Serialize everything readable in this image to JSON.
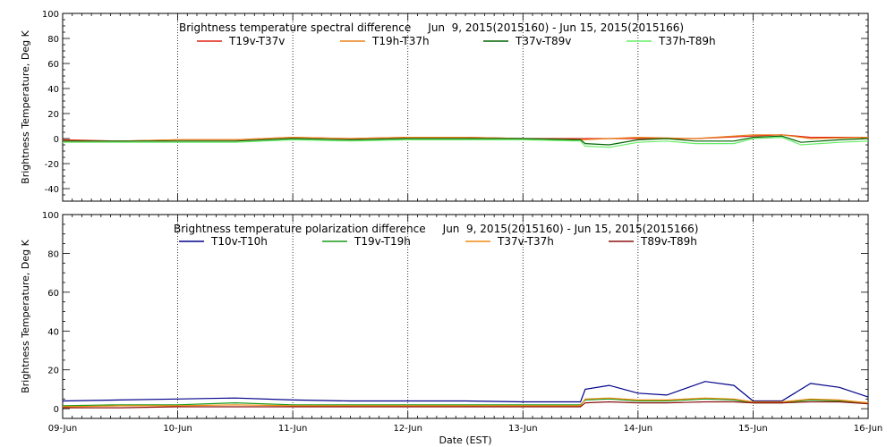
{
  "x_axis": {
    "label": "Date (EST)",
    "tick_labels": [
      "09-Jun",
      "10-Jun",
      "11-Jun",
      "12-Jun",
      "13-Jun",
      "14-Jun",
      "15-Jun",
      "16-Jun"
    ]
  },
  "chart_data": [
    {
      "type": "line",
      "title": "Brightness temperature spectral difference     Jun  9, 2015(2015160) - Jun 15, 2015(2015166)",
      "xlabel": "",
      "ylabel": "Brightness Temperature, Deg K",
      "xlim": [
        "2015-06-09",
        "2015-06-16"
      ],
      "ylim": [
        -50,
        100
      ],
      "yticks": [
        -40,
        -20,
        0,
        20,
        40,
        60,
        80,
        100
      ],
      "grid": "vertical dotted lines at each day",
      "legend_placement": "top",
      "series": [
        {
          "name": "T19v-T37v",
          "color": "#e02010",
          "points": [
            [
              "2015-06-09 00:00",
              -1
            ],
            [
              "2015-06-09 12:00",
              -2
            ],
            [
              "2015-06-10 00:00",
              -1
            ],
            [
              "2015-06-10 12:00",
              -1
            ],
            [
              "2015-06-11 00:00",
              1
            ],
            [
              "2015-06-11 12:00",
              0
            ],
            [
              "2015-06-12 00:00",
              1
            ],
            [
              "2015-06-12 12:00",
              1
            ],
            [
              "2015-06-13 00:00",
              0
            ],
            [
              "2015-06-13 12:00",
              0
            ],
            [
              "2015-06-14 00:00",
              0
            ],
            [
              "2015-06-14 12:00",
              0
            ],
            [
              "2015-06-15 00:00",
              2
            ],
            [
              "2015-06-15 06:00",
              3
            ],
            [
              "2015-06-15 12:00",
              1
            ],
            [
              "2015-06-16 00:00",
              1
            ]
          ]
        },
        {
          "name": "T19h-T37h",
          "color": "#e8801a",
          "points": [
            [
              "2015-06-09 00:00",
              -2
            ],
            [
              "2015-06-09 12:00",
              -2
            ],
            [
              "2015-06-10 00:00",
              -1
            ],
            [
              "2015-06-10 12:00",
              -1
            ],
            [
              "2015-06-11 00:00",
              1
            ],
            [
              "2015-06-11 12:00",
              0
            ],
            [
              "2015-06-12 00:00",
              1
            ],
            [
              "2015-06-12 12:00",
              1
            ],
            [
              "2015-06-13 00:00",
              0
            ],
            [
              "2015-06-13 12:00",
              -1
            ],
            [
              "2015-06-14 00:00",
              1
            ],
            [
              "2015-06-14 12:00",
              0
            ],
            [
              "2015-06-15 00:00",
              3
            ],
            [
              "2015-06-15 06:00",
              3
            ],
            [
              "2015-06-15 12:00",
              0
            ],
            [
              "2015-06-16 00:00",
              1
            ]
          ]
        },
        {
          "name": "T37v-T89v",
          "color": "#006400",
          "points": [
            [
              "2015-06-09 00:00",
              -2
            ],
            [
              "2015-06-09 12:00",
              -2
            ],
            [
              "2015-06-10 00:00",
              -2
            ],
            [
              "2015-06-10 12:00",
              -2
            ],
            [
              "2015-06-11 00:00",
              0
            ],
            [
              "2015-06-11 12:00",
              -1
            ],
            [
              "2015-06-12 00:00",
              0
            ],
            [
              "2015-06-12 12:00",
              0
            ],
            [
              "2015-06-13 00:00",
              0
            ],
            [
              "2015-06-13 12:00",
              -1
            ],
            [
              "2015-06-13 13:00",
              -4
            ],
            [
              "2015-06-13 18:00",
              -5
            ],
            [
              "2015-06-14 00:00",
              -1
            ],
            [
              "2015-06-14 06:00",
              0
            ],
            [
              "2015-06-14 12:00",
              -2
            ],
            [
              "2015-06-14 20:00",
              -2
            ],
            [
              "2015-06-15 00:00",
              1
            ],
            [
              "2015-06-15 06:00",
              2
            ],
            [
              "2015-06-15 10:00",
              -3
            ],
            [
              "2015-06-15 18:00",
              -1
            ],
            [
              "2015-06-16 00:00",
              0
            ]
          ]
        },
        {
          "name": "T37h-T89h",
          "color": "#66ee66",
          "points": [
            [
              "2015-06-09 00:00",
              -3
            ],
            [
              "2015-06-09 12:00",
              -3
            ],
            [
              "2015-06-10 00:00",
              -3
            ],
            [
              "2015-06-10 12:00",
              -3
            ],
            [
              "2015-06-11 00:00",
              -1
            ],
            [
              "2015-06-11 12:00",
              -2
            ],
            [
              "2015-06-12 00:00",
              -1
            ],
            [
              "2015-06-12 12:00",
              -1
            ],
            [
              "2015-06-13 00:00",
              -1
            ],
            [
              "2015-06-13 12:00",
              -2
            ],
            [
              "2015-06-13 13:00",
              -6
            ],
            [
              "2015-06-13 18:00",
              -7
            ],
            [
              "2015-06-14 00:00",
              -3
            ],
            [
              "2015-06-14 06:00",
              -2
            ],
            [
              "2015-06-14 12:00",
              -4
            ],
            [
              "2015-06-14 20:00",
              -4
            ],
            [
              "2015-06-15 00:00",
              0
            ],
            [
              "2015-06-15 06:00",
              1
            ],
            [
              "2015-06-15 10:00",
              -5
            ],
            [
              "2015-06-15 18:00",
              -3
            ],
            [
              "2015-06-16 00:00",
              -2
            ]
          ]
        }
      ]
    },
    {
      "type": "line",
      "title": "Brightness temperature polarization difference     Jun  9, 2015(2015160) - Jun 15, 2015(2015166)",
      "xlabel": "Date (EST)",
      "ylabel": "Brightness Temperature, Deg K",
      "xlim": [
        "2015-06-09",
        "2015-06-16"
      ],
      "ylim": [
        -5,
        100
      ],
      "yticks": [
        0,
        20,
        40,
        60,
        80,
        100
      ],
      "grid": "vertical dotted lines at each day",
      "legend_placement": "top",
      "series": [
        {
          "name": "T10v-T10h",
          "color": "#00008b",
          "points": [
            [
              "2015-06-09 00:00",
              4
            ],
            [
              "2015-06-09 12:00",
              4.5
            ],
            [
              "2015-06-10 00:00",
              5
            ],
            [
              "2015-06-10 12:00",
              5.5
            ],
            [
              "2015-06-11 00:00",
              4.5
            ],
            [
              "2015-06-11 12:00",
              4
            ],
            [
              "2015-06-12 00:00",
              4
            ],
            [
              "2015-06-12 12:00",
              4
            ],
            [
              "2015-06-13 00:00",
              3.5
            ],
            [
              "2015-06-13 12:00",
              3.5
            ],
            [
              "2015-06-13 13:00",
              10
            ],
            [
              "2015-06-13 18:00",
              12
            ],
            [
              "2015-06-14 00:00",
              8
            ],
            [
              "2015-06-14 06:00",
              7
            ],
            [
              "2015-06-14 14:00",
              14
            ],
            [
              "2015-06-14 20:00",
              12
            ],
            [
              "2015-06-15 00:00",
              4
            ],
            [
              "2015-06-15 06:00",
              4
            ],
            [
              "2015-06-15 12:00",
              13
            ],
            [
              "2015-06-15 18:00",
              11
            ],
            [
              "2015-06-16 00:00",
              6
            ]
          ]
        },
        {
          "name": "T19v-T19h",
          "color": "#1a9a1a",
          "points": [
            [
              "2015-06-09 00:00",
              1.5
            ],
            [
              "2015-06-09 12:00",
              2
            ],
            [
              "2015-06-10 00:00",
              2
            ],
            [
              "2015-06-10 12:00",
              3
            ],
            [
              "2015-06-11 00:00",
              2
            ],
            [
              "2015-06-11 12:00",
              2
            ],
            [
              "2015-06-12 00:00",
              2
            ],
            [
              "2015-06-12 12:00",
              2
            ],
            [
              "2015-06-13 00:00",
              2
            ],
            [
              "2015-06-13 12:00",
              2
            ],
            [
              "2015-06-13 13:00",
              4.5
            ],
            [
              "2015-06-13 18:00",
              5
            ],
            [
              "2015-06-14 00:00",
              4
            ],
            [
              "2015-06-14 06:00",
              4
            ],
            [
              "2015-06-14 14:00",
              5
            ],
            [
              "2015-06-14 20:00",
              4.5
            ],
            [
              "2015-06-15 00:00",
              3
            ],
            [
              "2015-06-15 06:00",
              3
            ],
            [
              "2015-06-15 12:00",
              4.5
            ],
            [
              "2015-06-15 18:00",
              4
            ],
            [
              "2015-06-16 00:00",
              3
            ]
          ]
        },
        {
          "name": "T37v-T37h",
          "color": "#f08a10",
          "points": [
            [
              "2015-06-09 00:00",
              1
            ],
            [
              "2015-06-09 12:00",
              1.5
            ],
            [
              "2015-06-10 00:00",
              1.5
            ],
            [
              "2015-06-10 12:00",
              2
            ],
            [
              "2015-06-11 00:00",
              1.5
            ],
            [
              "2015-06-11 12:00",
              1.5
            ],
            [
              "2015-06-12 00:00",
              1.5
            ],
            [
              "2015-06-12 12:00",
              1.5
            ],
            [
              "2015-06-13 00:00",
              1.5
            ],
            [
              "2015-06-13 12:00",
              1.5
            ],
            [
              "2015-06-13 13:00",
              5
            ],
            [
              "2015-06-13 18:00",
              5.5
            ],
            [
              "2015-06-14 00:00",
              4.5
            ],
            [
              "2015-06-14 06:00",
              4.5
            ],
            [
              "2015-06-14 14:00",
              5.5
            ],
            [
              "2015-06-14 20:00",
              5
            ],
            [
              "2015-06-15 00:00",
              3.5
            ],
            [
              "2015-06-15 06:00",
              3.5
            ],
            [
              "2015-06-15 12:00",
              5
            ],
            [
              "2015-06-15 18:00",
              4.5
            ],
            [
              "2015-06-16 00:00",
              3
            ]
          ]
        },
        {
          "name": "T89v-T89h",
          "color": "#8b1010",
          "points": [
            [
              "2015-06-09 00:00",
              0.5
            ],
            [
              "2015-06-09 12:00",
              0.5
            ],
            [
              "2015-06-10 00:00",
              1
            ],
            [
              "2015-06-10 12:00",
              1
            ],
            [
              "2015-06-11 00:00",
              1
            ],
            [
              "2015-06-11 12:00",
              1
            ],
            [
              "2015-06-12 00:00",
              1
            ],
            [
              "2015-06-12 12:00",
              1
            ],
            [
              "2015-06-13 00:00",
              1
            ],
            [
              "2015-06-13 12:00",
              1
            ],
            [
              "2015-06-13 13:00",
              3
            ],
            [
              "2015-06-13 18:00",
              3.5
            ],
            [
              "2015-06-14 00:00",
              3
            ],
            [
              "2015-06-14 06:00",
              3
            ],
            [
              "2015-06-14 14:00",
              3.5
            ],
            [
              "2015-06-14 20:00",
              3.5
            ],
            [
              "2015-06-15 00:00",
              3
            ],
            [
              "2015-06-15 06:00",
              3
            ],
            [
              "2015-06-15 12:00",
              3.5
            ],
            [
              "2015-06-15 18:00",
              3.5
            ],
            [
              "2015-06-16 00:00",
              2.5
            ]
          ]
        }
      ]
    }
  ]
}
